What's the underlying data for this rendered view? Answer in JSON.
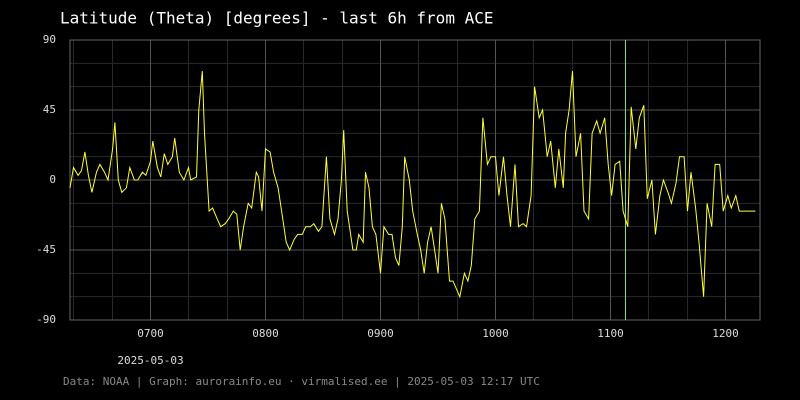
{
  "chart_data": {
    "type": "line",
    "title": "Latitude (Theta) [degrees] - last 6h from ACE",
    "footer": "Data: NOAA | Graph: aurorainfo.eu · virmalised.ee | 2025-05-03 12:17 UTC",
    "x_date_label": "2025-05-03",
    "xlim": [
      6.3,
      12.3
    ],
    "xticks": [
      {
        "value": 7,
        "label": "0700"
      },
      {
        "value": 8,
        "label": "0800"
      },
      {
        "value": 9,
        "label": "0900"
      },
      {
        "value": 10,
        "label": "1000"
      },
      {
        "value": 11,
        "label": "1100"
      },
      {
        "value": 12,
        "label": "1200"
      }
    ],
    "xminorticks": [
      6.33,
      6.67,
      7.33,
      7.67,
      8.33,
      8.67,
      9.33,
      9.67,
      10.33,
      10.67,
      11.33,
      11.67,
      12.33
    ],
    "ylim": [
      -90,
      90
    ],
    "yticks": [
      -90,
      -45,
      0,
      45,
      90
    ],
    "yminorticks": [
      -75,
      -60,
      -30,
      -15,
      15,
      30,
      60,
      75
    ],
    "grid": true,
    "marker_line": {
      "x": 11.13,
      "color": "#8fe08f"
    },
    "series": [
      {
        "color": "#ffff33",
        "x": [
          6.3,
          6.33,
          6.37,
          6.4,
          6.43,
          6.46,
          6.49,
          6.53,
          6.56,
          6.6,
          6.63,
          6.67,
          6.69,
          6.72,
          6.75,
          6.79,
          6.82,
          6.86,
          6.89,
          6.93,
          6.96,
          7.0,
          7.02,
          7.06,
          7.09,
          7.12,
          7.15,
          7.19,
          7.21,
          7.25,
          7.29,
          7.33,
          7.35,
          7.4,
          7.42,
          7.45,
          7.47,
          7.51,
          7.54,
          7.58,
          7.61,
          7.65,
          7.68,
          7.72,
          7.75,
          7.78,
          7.81,
          7.85,
          7.88,
          7.92,
          7.94,
          7.97,
          8.0,
          8.04,
          8.07,
          8.11,
          8.14,
          8.18,
          8.21,
          8.25,
          8.28,
          8.32,
          8.35,
          8.39,
          8.42,
          8.46,
          8.49,
          8.53,
          8.56,
          8.6,
          8.63,
          8.66,
          8.68,
          8.71,
          8.73,
          8.76,
          8.79,
          8.81,
          8.85,
          8.87,
          8.9,
          8.93,
          8.96,
          9.0,
          9.03,
          9.07,
          9.1,
          9.13,
          9.16,
          9.19,
          9.21,
          9.25,
          9.28,
          9.32,
          9.35,
          9.38,
          9.41,
          9.44,
          9.47,
          9.5,
          9.53,
          9.56,
          9.6,
          9.63,
          9.66,
          9.69,
          9.73,
          9.76,
          9.79,
          9.82,
          9.86,
          9.89,
          9.93,
          9.96,
          10.0,
          10.03,
          10.07,
          10.1,
          10.13,
          10.17,
          10.2,
          10.24,
          10.27,
          10.31,
          10.34,
          10.38,
          10.41,
          10.45,
          10.48,
          10.52,
          10.55,
          10.59,
          10.61,
          10.64,
          10.67,
          10.7,
          10.74,
          10.77,
          10.81,
          10.84,
          10.88,
          10.91,
          10.95,
          10.98,
          11.01,
          11.04,
          11.08,
          11.11,
          11.15,
          11.18,
          11.22,
          11.25,
          11.29,
          11.32,
          11.36,
          11.39,
          11.43,
          11.46,
          11.5,
          11.53,
          11.57,
          11.6,
          11.64,
          11.67,
          11.7,
          11.74,
          11.77,
          11.81,
          11.84,
          11.88,
          11.91,
          11.95,
          11.98,
          12.02,
          12.05,
          12.09,
          12.12,
          12.26
        ],
        "values": [
          -5,
          8,
          3,
          6,
          18,
          3,
          -8,
          5,
          10,
          5,
          0,
          20,
          37,
          0,
          -8,
          -5,
          8,
          0,
          0,
          5,
          3,
          12,
          25,
          8,
          2,
          17,
          10,
          15,
          27,
          5,
          0,
          8,
          0,
          2,
          45,
          70,
          30,
          -20,
          -18,
          -25,
          -30,
          -28,
          -25,
          -20,
          -22,
          -45,
          -30,
          -15,
          -18,
          5,
          2,
          -20,
          20,
          18,
          5,
          -5,
          -20,
          -40,
          -45,
          -38,
          -35,
          -35,
          -30,
          -30,
          -28,
          -33,
          -30,
          15,
          -25,
          -35,
          -25,
          0,
          32,
          -20,
          -30,
          -45,
          -45,
          -35,
          -40,
          5,
          -5,
          -30,
          -35,
          -60,
          -30,
          -35,
          -35,
          -50,
          -55,
          -30,
          15,
          0,
          -20,
          -35,
          -45,
          -60,
          -40,
          -30,
          -45,
          -60,
          -15,
          -25,
          -65,
          -65,
          -70,
          -75,
          -60,
          -65,
          -55,
          -25,
          -20,
          40,
          10,
          15,
          15,
          -10,
          15,
          -10,
          -30,
          10,
          -30,
          -28,
          -30,
          -10,
          60,
          40,
          45,
          15,
          25,
          -5,
          20,
          -5,
          30,
          45,
          70,
          15,
          30,
          -20,
          -25,
          30,
          38,
          30,
          40,
          10,
          -10,
          10,
          12,
          -20,
          -30,
          47,
          20,
          40,
          48,
          -12,
          0,
          -35,
          -10,
          0,
          -8,
          -15,
          -2,
          15,
          15,
          -20,
          5,
          -18,
          -40,
          -75,
          -15,
          -30,
          10,
          10,
          -20,
          -10,
          -18,
          -10,
          -20,
          -20
        ]
      }
    ]
  }
}
